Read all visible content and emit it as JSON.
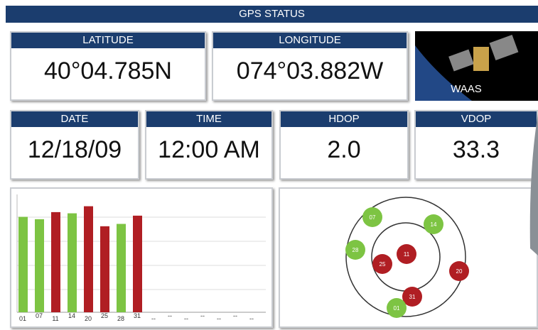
{
  "header": {
    "title": "GPS STATUS"
  },
  "latitude": {
    "label": "LATITUDE",
    "value": "40°04.785N"
  },
  "longitude": {
    "label": "LONGITUDE",
    "value": "074°03.882W"
  },
  "waas": {
    "label": "WAAS"
  },
  "date": {
    "label": "DATE",
    "value": "12/18/09"
  },
  "time": {
    "label": "TIME",
    "value": "12:00 AM"
  },
  "hdop": {
    "label": "HDOP",
    "value": "2.0"
  },
  "vdop": {
    "label": "VDOP",
    "value": "33.3"
  },
  "signal_chart": {
    "type": "bar",
    "satellites": [
      "01",
      "07",
      "11",
      "14",
      "20",
      "25",
      "28",
      "31",
      "--",
      "--",
      "--",
      "--",
      "--",
      "--",
      "--"
    ],
    "values": [
      81,
      79,
      85,
      84,
      90,
      73,
      75,
      82,
      null,
      null,
      null,
      null,
      null,
      null,
      null
    ],
    "colors": [
      "#7dc443",
      "#7dc443",
      "#b01e23",
      "#7dc443",
      "#b01e23",
      "#b01e23",
      "#7dc443",
      "#b01e23",
      null,
      null,
      null,
      null,
      null,
      null,
      null
    ],
    "ylim": [
      0,
      100
    ]
  },
  "sky_plot": {
    "satellites": [
      {
        "id": "07",
        "color": "#7dc443"
      },
      {
        "id": "14",
        "color": "#7dc443"
      },
      {
        "id": "28",
        "color": "#7dc443"
      },
      {
        "id": "11",
        "color": "#b01e23"
      },
      {
        "id": "25",
        "color": "#b01e23"
      },
      {
        "id": "20",
        "color": "#b01e23"
      },
      {
        "id": "31",
        "color": "#b01e23"
      },
      {
        "id": "01",
        "color": "#7dc443"
      }
    ]
  }
}
